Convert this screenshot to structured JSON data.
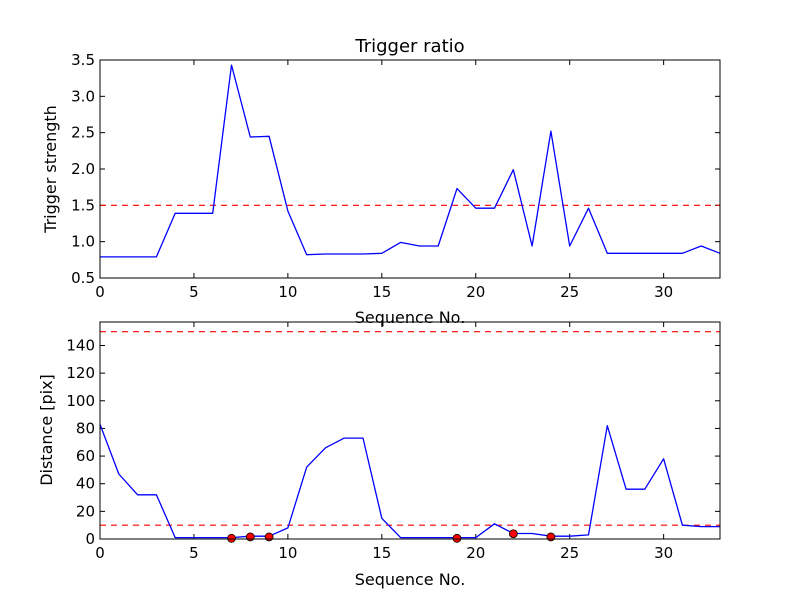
{
  "chart_data": [
    {
      "type": "line",
      "title": "Trigger ratio",
      "xlabel": "Sequence No.",
      "ylabel": "Trigger strength",
      "xlim": [
        0,
        33
      ],
      "ylim": [
        0.5,
        3.5
      ],
      "xticks": [
        0,
        5,
        10,
        15,
        20,
        25,
        30
      ],
      "xtick_labels": [
        "0",
        "5",
        "10",
        "15",
        "20",
        "25",
        "30"
      ],
      "yticks": [
        0.5,
        1.0,
        1.5,
        2.0,
        2.5,
        3.0,
        3.5
      ],
      "ytick_labels": [
        "0.5",
        "1.0",
        "1.5",
        "2.0",
        "2.5",
        "3.0",
        "3.5"
      ],
      "grid": false,
      "series": [
        {
          "color": "#0000ff",
          "x": [
            0,
            1,
            2,
            3,
            4,
            5,
            6,
            7,
            8,
            9,
            10,
            11,
            12,
            13,
            14,
            15,
            16,
            17,
            18,
            19,
            20,
            21,
            22,
            23,
            24,
            25,
            26,
            27,
            28,
            29,
            30,
            31,
            32,
            33
          ],
          "values": [
            0.79,
            0.79,
            0.79,
            0.79,
            1.39,
            1.39,
            1.39,
            3.43,
            2.44,
            2.45,
            1.42,
            0.82,
            0.83,
            0.83,
            0.83,
            0.84,
            0.99,
            0.94,
            0.94,
            1.73,
            1.46,
            1.46,
            1.99,
            0.94,
            2.52,
            0.94,
            1.46,
            0.84,
            0.84,
            0.84,
            0.84,
            0.84,
            0.94,
            0.84
          ]
        }
      ],
      "thresholds": [
        {
          "y": 1.5,
          "color": "#ff0000",
          "style": "dashed"
        }
      ]
    },
    {
      "type": "line",
      "title": "",
      "xlabel": "Sequence No.",
      "ylabel": "Distance [pix]",
      "xlim": [
        0,
        33
      ],
      "ylim": [
        0,
        157
      ],
      "xticks": [
        0,
        5,
        10,
        15,
        20,
        25,
        30
      ],
      "xtick_labels": [
        "0",
        "5",
        "10",
        "15",
        "20",
        "25",
        "30"
      ],
      "yticks": [
        0,
        20,
        40,
        60,
        80,
        100,
        120,
        140
      ],
      "ytick_labels": [
        "0",
        "20",
        "40",
        "60",
        "80",
        "100",
        "120",
        "140"
      ],
      "grid": false,
      "series": [
        {
          "color": "#0000ff",
          "x": [
            0,
            1,
            2,
            3,
            4,
            5,
            6,
            7,
            8,
            9,
            10,
            11,
            12,
            13,
            14,
            15,
            16,
            17,
            18,
            19,
            20,
            21,
            22,
            23,
            24,
            25,
            26,
            27,
            28,
            29,
            30,
            31,
            32,
            33
          ],
          "values": [
            83,
            47,
            32,
            32,
            1,
            1,
            1,
            1,
            2,
            2,
            8,
            52,
            66,
            73,
            73,
            15,
            1,
            1,
            1,
            1,
            1,
            11,
            4,
            4,
            2,
            2,
            3,
            82,
            36,
            36,
            58,
            10,
            9,
            9
          ]
        }
      ],
      "markers": {
        "color": "#ff0000",
        "x": [
          7,
          8,
          9,
          19,
          22,
          24
        ],
        "y": [
          0.5,
          1.5,
          1.5,
          0.5,
          3.8,
          1.5
        ]
      },
      "thresholds": [
        {
          "y": 150,
          "color": "#ff0000",
          "style": "dashed"
        },
        {
          "y": 10,
          "color": "#ff0000",
          "style": "dashed"
        }
      ]
    }
  ]
}
